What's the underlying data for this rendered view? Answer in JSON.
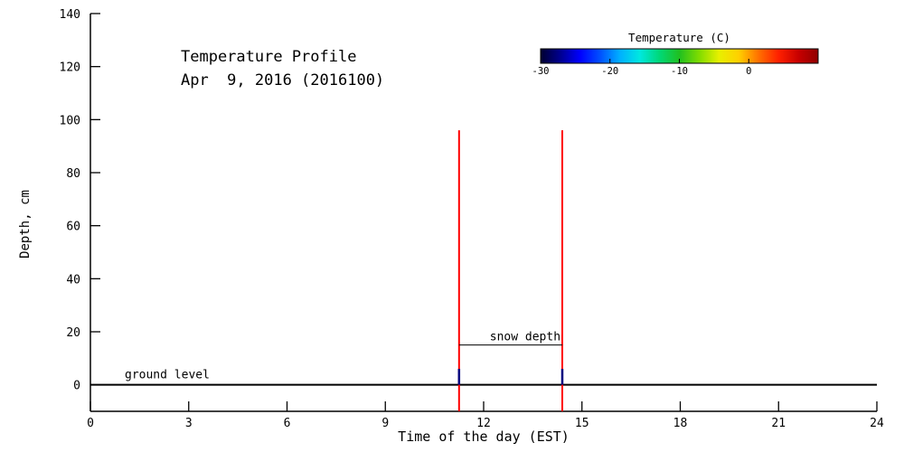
{
  "page": {
    "background": "#ffffff",
    "axis_color": "#000000"
  },
  "chart_data": {
    "type": "line",
    "title": "Temperature Profile",
    "subtitle": "Apr  9, 2016 (2016100)",
    "xlabel": "Time of the day (EST)",
    "ylabel": "Depth, cm",
    "xlim": [
      0,
      24
    ],
    "ylim": [
      -10,
      140
    ],
    "xticks": [
      0,
      3,
      6,
      9,
      12,
      15,
      18,
      21,
      24
    ],
    "yticks": [
      0,
      20,
      40,
      60,
      80,
      100,
      120,
      140
    ],
    "grid": false,
    "legend_position": "top-right",
    "ground_level": {
      "label": "ground level",
      "depth": 0,
      "color": "#000000"
    },
    "snow_depth": {
      "label": "snow depth",
      "depth": 15,
      "t_start": 11.25,
      "t_end": 14.4,
      "color": "#000000"
    },
    "profiles": [
      {
        "time": 11.25,
        "bottom": -10,
        "top": 96,
        "color": "#ff0000",
        "cold_segment": {
          "from": 0,
          "to": 6,
          "color": "#000080"
        }
      },
      {
        "time": 14.4,
        "bottom": -10,
        "top": 96,
        "color": "#ff0000",
        "cold_segment": {
          "from": 0,
          "to": 6,
          "color": "#000080"
        }
      }
    ],
    "colorbar": {
      "title": "Temperature (C)",
      "min": -30,
      "max": 10,
      "ticks": [
        -30,
        -20,
        -10,
        0
      ],
      "colors": [
        "#000030",
        "#000090",
        "#0000ff",
        "#0050ff",
        "#00b0ff",
        "#00e8e0",
        "#00d878",
        "#20c020",
        "#80dc00",
        "#e8f000",
        "#ffd000",
        "#ff7000",
        "#ff2000",
        "#c80000",
        "#900000"
      ]
    }
  }
}
